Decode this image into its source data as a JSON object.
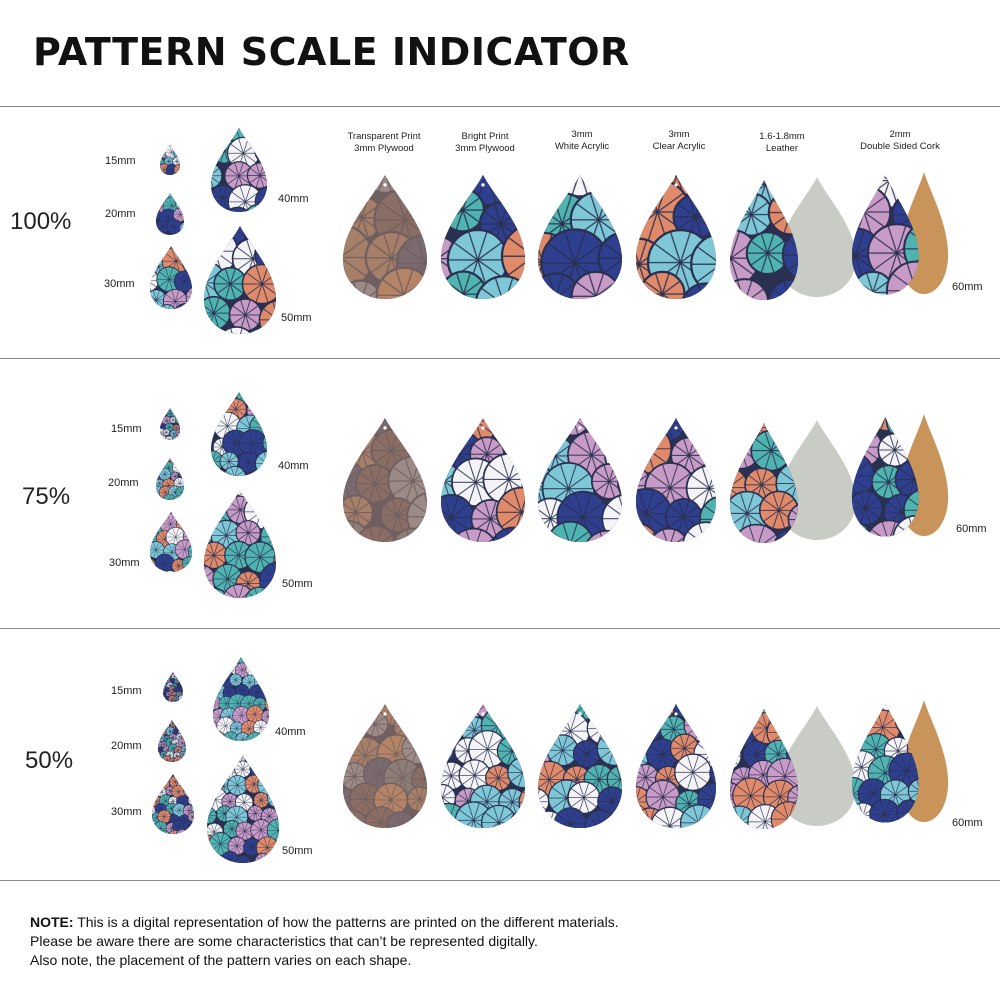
{
  "header": {
    "title": "PATTERN SCALE INDICATOR"
  },
  "materials": [
    {
      "line1": "Transparent Print",
      "line2": "3mm Plywood"
    },
    {
      "line1": "Bright Print",
      "line2": "3mm Plywood"
    },
    {
      "line1": "3mm",
      "line2": "White Acrylic"
    },
    {
      "line1": "3mm",
      "line2": "Clear Acrylic"
    },
    {
      "line1": "1.6-1.8mm",
      "line2": "Leather"
    },
    {
      "line1": "2mm",
      "line2": "Double Sided Cork"
    }
  ],
  "sections": [
    {
      "scale": "100%",
      "sizes": {
        "s15": "15mm",
        "s20": "20mm",
        "s30": "30mm",
        "s40": "40mm",
        "s50": "50mm",
        "s60": "60mm"
      }
    },
    {
      "scale": "75%",
      "sizes": {
        "s15": "15mm",
        "s20": "20mm",
        "s30": "30mm",
        "s40": "40mm",
        "s50": "50mm",
        "s60": "60mm"
      }
    },
    {
      "scale": "50%",
      "sizes": {
        "s15": "15mm",
        "s20": "20mm",
        "s30": "30mm",
        "s40": "40mm",
        "s50": "50mm",
        "s60": "60mm"
      }
    }
  ],
  "note": {
    "label": "NOTE:",
    "line1": " This is a digital representation of how the patterns are printed on the different materials.",
    "line2": "Please be aware there are some characteristics that can’t be represented digitally.",
    "line3": "Also note, the placement of the pattern varies on each shape."
  },
  "colors": {
    "navy": "#2f3f8f",
    "teal": "#4fb3b0",
    "pink": "#c89ac6",
    "coral": "#e08a6a",
    "sky": "#7dc7d6",
    "white": "#f4f4f6",
    "dark": "#2a3050",
    "leather": "#c9cbc5",
    "cork": "#c8945a"
  }
}
